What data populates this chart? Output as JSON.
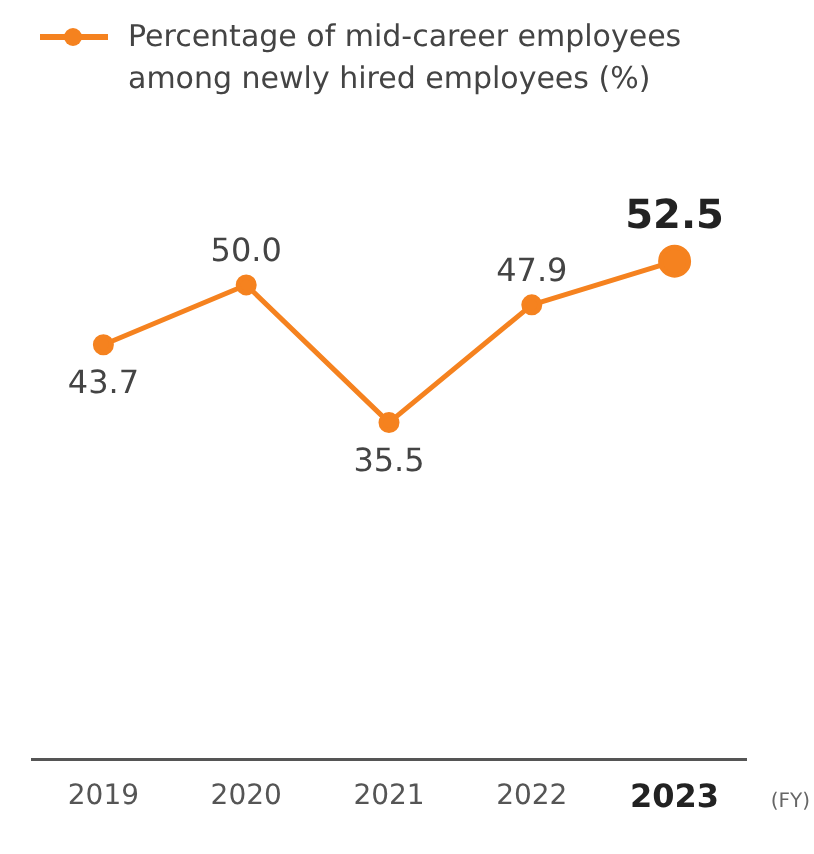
{
  "chart_data": {
    "type": "line",
    "xlabel": "(FY)",
    "categories": [
      "2019",
      "2020",
      "2021",
      "2022",
      "2023"
    ],
    "series": [
      {
        "name": "Percentage of mid-career employees among newly hired employees (%)",
        "color": "#f5821f",
        "values": [
          43.7,
          50.0,
          35.5,
          47.9,
          52.5
        ],
        "value_labels": [
          "43.7",
          "50.0",
          "35.5",
          "47.9",
          "52.5"
        ]
      }
    ],
    "legend": "top left",
    "marker": "circle",
    "grid": false
  }
}
